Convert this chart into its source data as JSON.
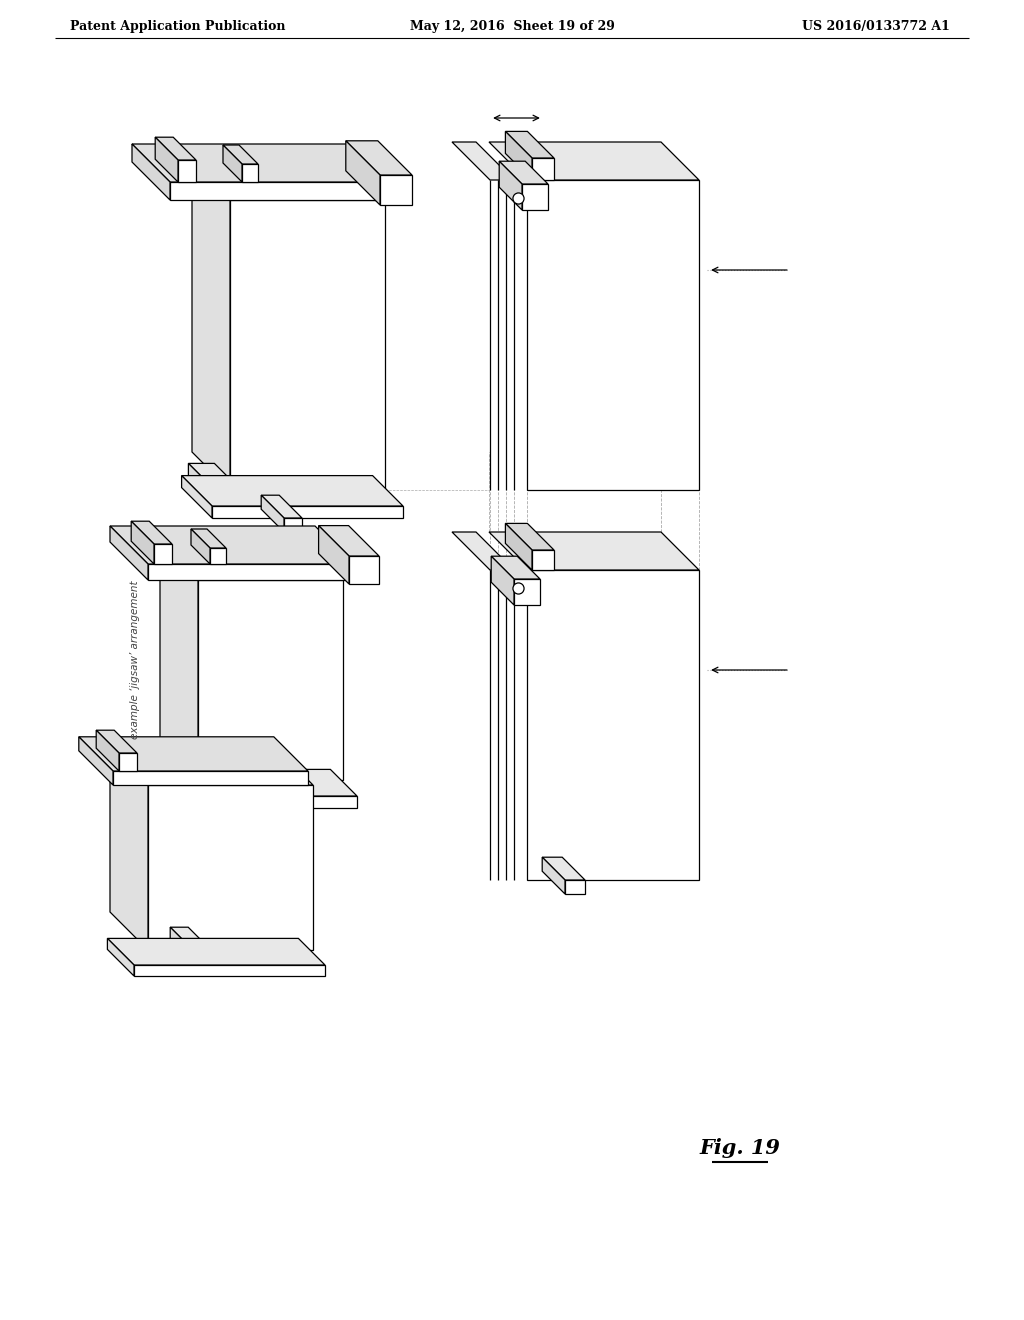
{
  "bg": "#ffffff",
  "lc": "#000000",
  "dc": "#aaaaaa",
  "header_left": "Patent Application Publication",
  "header_mid": "May 12, 2016  Sheet 19 of 29",
  "header_right": "US 2016/0133772 A1",
  "fig_label": "Fig. 19",
  "jigsaw_label": "example ‘jigsaw’ arrangement",
  "panel_note_1": "",
  "note_color": "#555555"
}
